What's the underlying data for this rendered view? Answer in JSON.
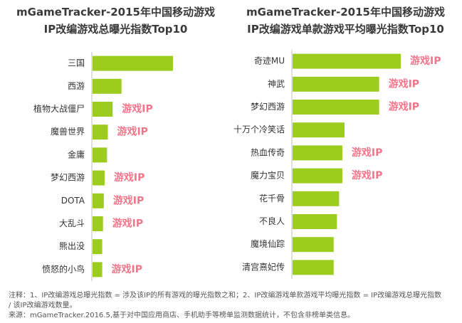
{
  "chart_data": [
    {
      "type": "bar",
      "orientation": "horizontal",
      "title_line1": "mGameTracker-2015年中国移动游戏",
      "title_line2": "IP改编游戏总曝光指数Top10",
      "categories": [
        "三国",
        "西游",
        "植物大战僵尸",
        "魔兽世界",
        "金庸",
        "梦幻西游",
        "DOTA",
        "大乱斗",
        "熊出没",
        "愤怒的小鸟"
      ],
      "values": [
        100,
        36,
        25,
        19,
        18,
        15,
        14,
        13,
        12,
        12
      ],
      "annotations": [
        "",
        "",
        "游戏IP",
        "游戏IP",
        "",
        "游戏IP",
        "游戏IP",
        "游戏IP",
        "",
        "游戏IP"
      ],
      "xlim": [
        0,
        100
      ],
      "grid": false,
      "bar_color": "#9ccc1e",
      "annotation_color": "#f0768a"
    },
    {
      "type": "bar",
      "orientation": "horizontal",
      "title_line1": "mGameTracker-2015年中国移动游戏",
      "title_line2": "IP改编游戏单款游戏平均曝光指数Top10",
      "categories": [
        "奇迹MU",
        "神武",
        "梦幻西游",
        "十万个冷笑话",
        "热血传奇",
        "魔力宝贝",
        "花千骨",
        "不良人",
        "魔境仙踪",
        "清宫熹妃传"
      ],
      "values": [
        100,
        80,
        80,
        48,
        46,
        46,
        43,
        41,
        38,
        38
      ],
      "annotations": [
        "游戏IP",
        "游戏IP",
        "游戏IP",
        "",
        "游戏IP",
        "游戏IP",
        "",
        "",
        "",
        ""
      ],
      "xlim": [
        0,
        100
      ],
      "grid": false,
      "bar_color": "#9ccc1e",
      "annotation_color": "#f0768a"
    }
  ],
  "footer": {
    "note_line1": "注释：1、IP改编游戏总曝光指数 = 涉及该IP的所有游戏的曝光指数之和；2、IP改编游戏单款游戏平均曝光指数 = IP改编游戏总曝光指数",
    "note_line2": "/ 该IP改编游戏数量。",
    "source": "来源：mGameTracker.2016.5,基于对中国应用商店、手机助手等榜单监测数据统计，不包含非榜单类信息。"
  }
}
